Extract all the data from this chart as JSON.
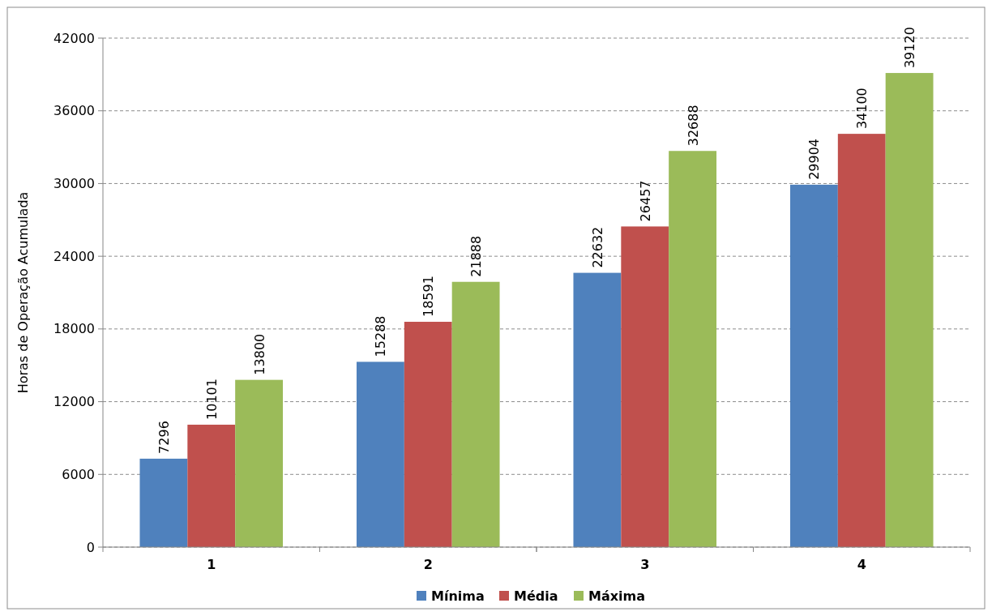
{
  "chart_data": {
    "type": "bar",
    "ylabel": "Horas de Operação Acumulada",
    "categories": [
      "1",
      "2",
      "3",
      "4"
    ],
    "series": [
      {
        "name": "Mínima",
        "color": "#4f81bd",
        "values": [
          7296,
          15288,
          22632,
          29904
        ]
      },
      {
        "name": "Média",
        "color": "#c0504d",
        "values": [
          10101,
          18591,
          26457,
          34100
        ]
      },
      {
        "name": "Máxima",
        "color": "#9bbb59",
        "values": [
          13800,
          21888,
          32688,
          39120
        ]
      }
    ],
    "ylim": [
      0,
      42000
    ],
    "yticks": [
      0,
      6000,
      12000,
      18000,
      24000,
      30000,
      36000,
      42000
    ],
    "grid": "y",
    "data_labels": true,
    "legend": "bottom"
  }
}
